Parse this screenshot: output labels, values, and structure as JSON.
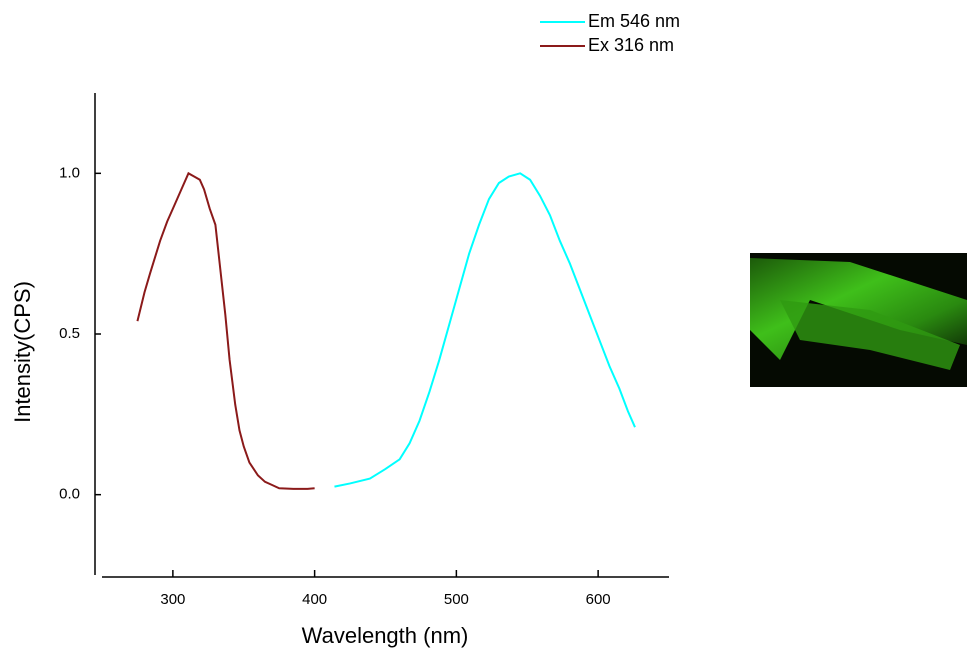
{
  "chart_data": {
    "type": "line",
    "x_label": "Wavelength (nm)",
    "y_label": "Intensity(CPS)",
    "xlim": [
      250,
      650
    ],
    "xticks": [
      300,
      400,
      500,
      600
    ],
    "ylim": [
      -0.25,
      1.25
    ],
    "yticks": [
      {
        "value": 0,
        "label": "0.0"
      },
      0.5,
      {
        "value": 1,
        "label": "1.0"
      }
    ],
    "legend": "top-right",
    "series": [
      {
        "name": "Em 546 nm",
        "color": "#00ffff",
        "x": [
          414,
          425,
          439,
          450,
          460,
          467,
          474,
          481,
          488,
          495,
          502,
          509,
          516,
          523,
          530,
          537,
          545,
          552,
          559,
          566,
          573,
          580,
          587,
          594,
          601,
          608,
          615,
          621,
          626
        ],
        "values": [
          0.025,
          0.035,
          0.05,
          0.08,
          0.11,
          0.16,
          0.23,
          0.32,
          0.42,
          0.53,
          0.64,
          0.75,
          0.84,
          0.92,
          0.97,
          0.99,
          1.0,
          0.98,
          0.93,
          0.87,
          0.79,
          0.72,
          0.64,
          0.56,
          0.48,
          0.4,
          0.33,
          0.26,
          0.21
        ]
      },
      {
        "name": "Ex 316 nm",
        "color": "#8b1a1a",
        "x": [
          275,
          280,
          284,
          291,
          296,
          301,
          306,
          311,
          315,
          319,
          322,
          326,
          330,
          333,
          337,
          340,
          344,
          347,
          350,
          354,
          360,
          365,
          370,
          375,
          385,
          395,
          400
        ],
        "values": [
          0.54,
          0.63,
          0.69,
          0.79,
          0.85,
          0.9,
          0.95,
          1.0,
          0.99,
          0.98,
          0.95,
          0.89,
          0.84,
          0.72,
          0.56,
          0.42,
          0.28,
          0.2,
          0.15,
          0.1,
          0.06,
          0.04,
          0.03,
          0.02,
          0.018,
          0.018,
          0.02
        ]
      }
    ]
  }
}
